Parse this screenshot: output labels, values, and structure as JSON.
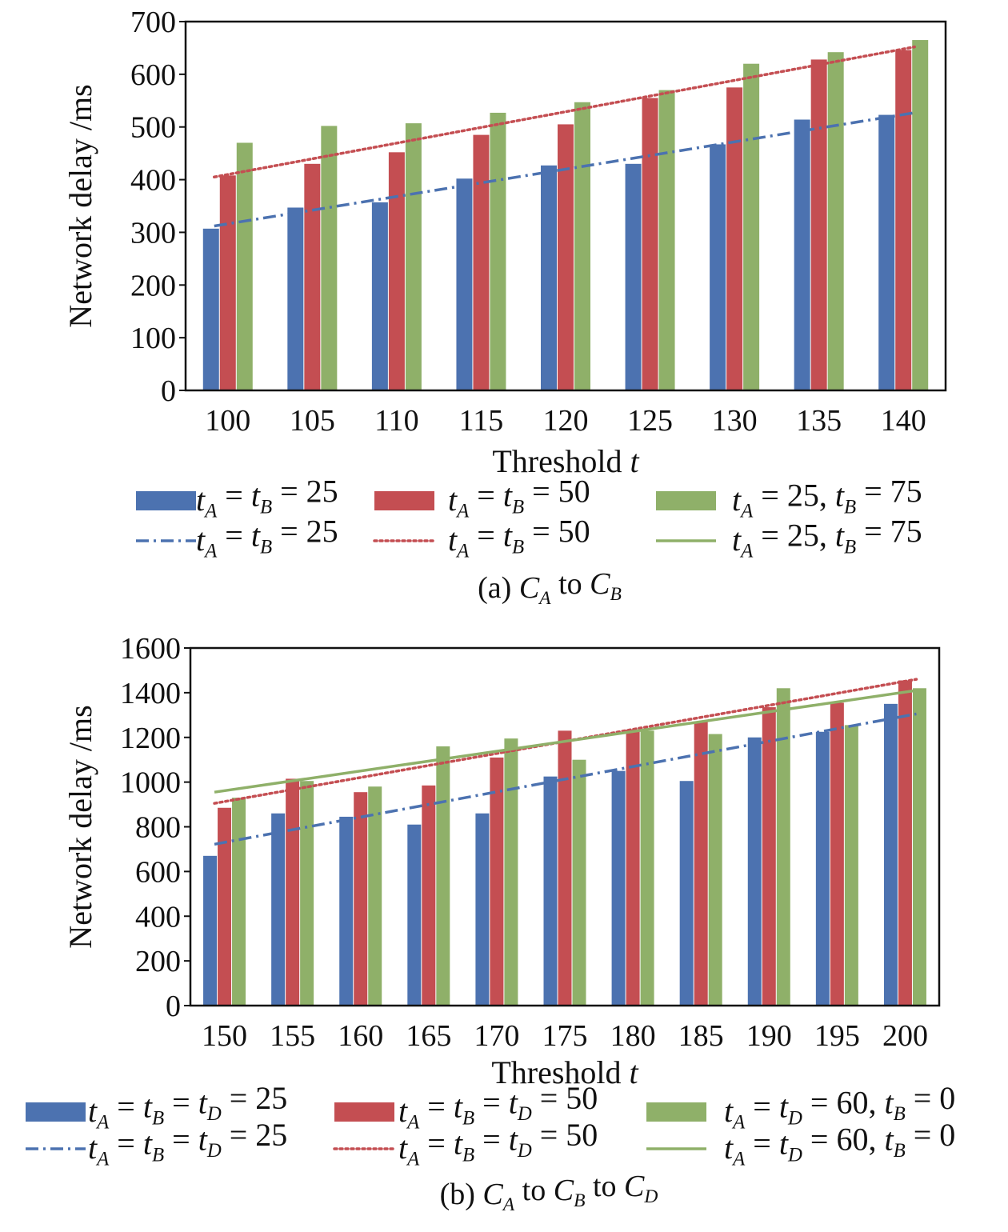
{
  "chart_data": [
    {
      "id": "a",
      "type": "bar",
      "xlabel": "Threshold",
      "xlabel_var": "t",
      "ylabel": "Network delay /ms",
      "ylim": [
        0,
        700
      ],
      "yticks": [
        0,
        100,
        200,
        300,
        400,
        500,
        600,
        700
      ],
      "categories": [
        "100",
        "105",
        "110",
        "115",
        "120",
        "125",
        "130",
        "135",
        "140"
      ],
      "series": [
        {
          "key": "s1",
          "color": "#4c72b0",
          "values": [
            307,
            347,
            357,
            402,
            427,
            430,
            467,
            514,
            523
          ]
        },
        {
          "key": "s2",
          "color": "#c44e52",
          "values": [
            408,
            430,
            452,
            485,
            505,
            555,
            575,
            628,
            646
          ]
        },
        {
          "key": "s3",
          "color": "#8fb069",
          "values": [
            470,
            502,
            507,
            527,
            547,
            570,
            620,
            642,
            665
          ]
        }
      ],
      "trend_lines": [
        {
          "key": "s1",
          "style": "dashdot",
          "color": "#4c72b0",
          "from": 312,
          "to": 527
        },
        {
          "key": "s2",
          "style": "dotted",
          "color": "#c44e52",
          "from": 405,
          "to": 652
        }
      ],
      "legend_labels": {
        "s1": {
          "parts": [
            [
              "i",
              "t"
            ],
            [
              "sub",
              "A"
            ],
            [
              "n",
              " = "
            ],
            [
              "i",
              "t"
            ],
            [
              "sub",
              "B"
            ],
            [
              "n",
              " = 25"
            ]
          ]
        },
        "s2": {
          "parts": [
            [
              "i",
              "t"
            ],
            [
              "sub",
              "A"
            ],
            [
              "n",
              " = "
            ],
            [
              "i",
              "t"
            ],
            [
              "sub",
              "B"
            ],
            [
              "n",
              " = 50"
            ]
          ]
        },
        "s3": {
          "parts": [
            [
              "i",
              "t"
            ],
            [
              "sub",
              "A"
            ],
            [
              "n",
              " = 25, "
            ],
            [
              "i",
              "t"
            ],
            [
              "sub",
              "B"
            ],
            [
              "n",
              " = 75"
            ]
          ]
        }
      },
      "legend_lines": [
        "dashdot",
        "dotted",
        "solid"
      ],
      "caption": {
        "parts": [
          [
            "n",
            "(a) "
          ],
          [
            "i",
            "C"
          ],
          [
            "sub",
            "A"
          ],
          [
            "n",
            " to "
          ],
          [
            "i",
            "C"
          ],
          [
            "sub",
            "B"
          ]
        ]
      }
    },
    {
      "id": "b",
      "type": "bar",
      "xlabel": "Threshold",
      "xlabel_var": "t",
      "ylabel": "Network delay /ms",
      "ylim": [
        0,
        1600
      ],
      "yticks": [
        0,
        200,
        400,
        600,
        800,
        1000,
        1200,
        1400,
        1600
      ],
      "categories": [
        "150",
        "155",
        "160",
        "165",
        "170",
        "175",
        "180",
        "185",
        "190",
        "195",
        "200"
      ],
      "series": [
        {
          "key": "s1",
          "color": "#4c72b0",
          "values": [
            670,
            860,
            845,
            810,
            860,
            1025,
            1050,
            1005,
            1200,
            1225,
            1350
          ]
        },
        {
          "key": "s2",
          "color": "#c44e52",
          "values": [
            885,
            1015,
            955,
            985,
            1110,
            1230,
            1235,
            1270,
            1335,
            1355,
            1455
          ]
        },
        {
          "key": "s3",
          "color": "#8fb069",
          "values": [
            930,
            1005,
            980,
            1160,
            1195,
            1100,
            1230,
            1215,
            1420,
            1255,
            1420
          ]
        }
      ],
      "trend_lines": [
        {
          "key": "s1",
          "style": "dashdot",
          "color": "#4c72b0",
          "from": 722,
          "to": 1305
        },
        {
          "key": "s2",
          "style": "dotted",
          "color": "#c44e52",
          "from": 905,
          "to": 1460
        },
        {
          "key": "s3",
          "style": "solid",
          "color": "#8fb069",
          "from": 955,
          "to": 1410
        }
      ],
      "legend_labels": {
        "s1": {
          "parts": [
            [
              "i",
              "t"
            ],
            [
              "sub",
              "A"
            ],
            [
              "n",
              " = "
            ],
            [
              "i",
              "t"
            ],
            [
              "sub",
              "B"
            ],
            [
              "n",
              " = "
            ],
            [
              "i",
              "t"
            ],
            [
              "sub",
              "D"
            ],
            [
              "n",
              " = 25"
            ]
          ]
        },
        "s2": {
          "parts": [
            [
              "i",
              "t"
            ],
            [
              "sub",
              "A"
            ],
            [
              "n",
              " = "
            ],
            [
              "i",
              "t"
            ],
            [
              "sub",
              "B"
            ],
            [
              "n",
              " = "
            ],
            [
              "i",
              "t"
            ],
            [
              "sub",
              "D"
            ],
            [
              "n",
              " = 50"
            ]
          ]
        },
        "s3": {
          "parts": [
            [
              "i",
              "t"
            ],
            [
              "sub",
              "A"
            ],
            [
              "n",
              " = "
            ],
            [
              "i",
              "t"
            ],
            [
              "sub",
              "D"
            ],
            [
              "n",
              " = 60, "
            ],
            [
              "i",
              "t"
            ],
            [
              "sub",
              "B"
            ],
            [
              "n",
              " = 0"
            ]
          ]
        }
      },
      "legend_lines": [
        "dashdot",
        "dotted",
        "solid"
      ],
      "caption": {
        "parts": [
          [
            "n",
            "(b) "
          ],
          [
            "i",
            "C"
          ],
          [
            "sub",
            "A"
          ],
          [
            "n",
            " to "
          ],
          [
            "i",
            "C"
          ],
          [
            "sub",
            "B"
          ],
          [
            "n",
            " to "
          ],
          [
            "i",
            "C"
          ],
          [
            "sub",
            "D"
          ]
        ]
      }
    }
  ]
}
